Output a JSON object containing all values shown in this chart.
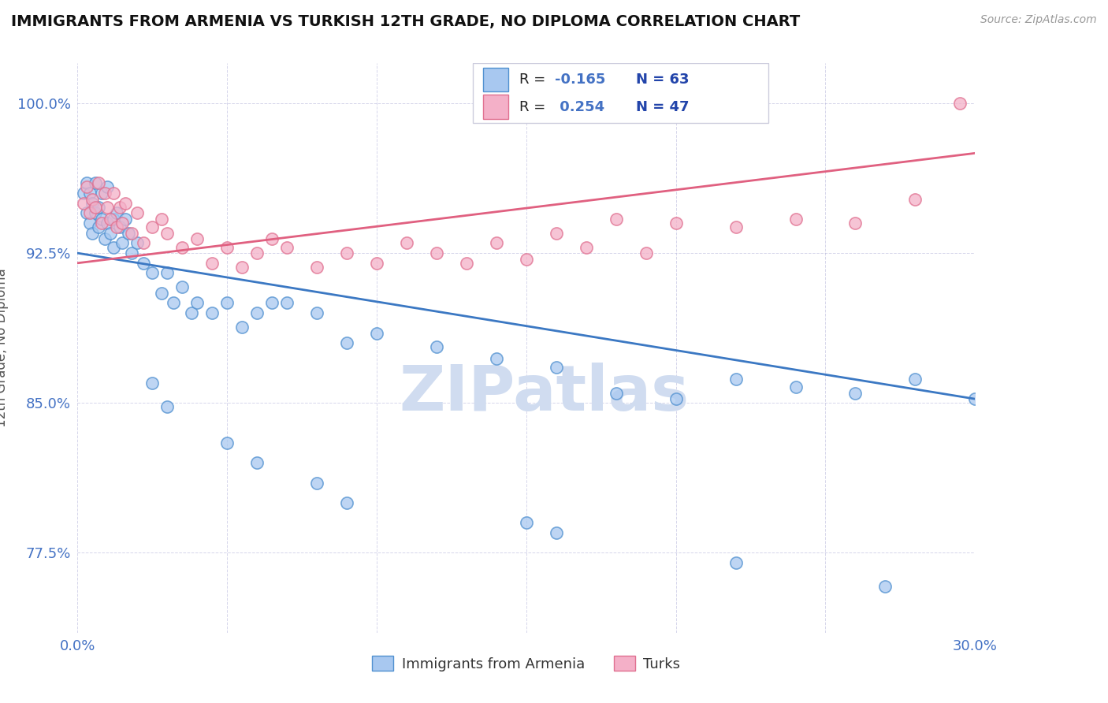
{
  "title": "IMMIGRANTS FROM ARMENIA VS TURKISH 12TH GRADE, NO DIPLOMA CORRELATION CHART",
  "source_text": "Source: ZipAtlas.com",
  "ylabel": "12th Grade, No Diploma",
  "legend_label_1": "Immigrants from Armenia",
  "legend_label_2": "Turks",
  "r1": -0.165,
  "n1": 63,
  "r2": 0.254,
  "n2": 47,
  "xlim": [
    0.0,
    0.3
  ],
  "ylim": [
    0.735,
    1.02
  ],
  "ytick_vals": [
    0.775,
    0.85,
    0.925,
    1.0
  ],
  "ytick_labels": [
    "77.5%",
    "85.0%",
    "92.5%",
    "100.0%"
  ],
  "xtick_vals": [
    0.0,
    0.05,
    0.1,
    0.15,
    0.2,
    0.25,
    0.3
  ],
  "xtick_labels": [
    "0.0%",
    "",
    "",
    "",
    "",
    "",
    "30.0%"
  ],
  "color_blue_fill": "#A8C8F0",
  "color_pink_fill": "#F4B0C8",
  "color_blue_edge": "#5090D0",
  "color_pink_edge": "#E07090",
  "color_blue_line": "#3B78C3",
  "color_pink_line": "#E06080",
  "color_text_blue": "#4472C4",
  "color_dark_blue": "#2244AA",
  "watermark_color": "#D0DCF0",
  "background_color": "#FFFFFF",
  "blue_trend_y0": 0.925,
  "blue_trend_y1": 0.852,
  "pink_trend_y0": 0.92,
  "pink_trend_y1": 0.975,
  "blue_x": [
    0.002,
    0.003,
    0.003,
    0.004,
    0.004,
    0.005,
    0.005,
    0.006,
    0.006,
    0.007,
    0.007,
    0.008,
    0.008,
    0.009,
    0.01,
    0.01,
    0.011,
    0.012,
    0.012,
    0.013,
    0.014,
    0.015,
    0.016,
    0.017,
    0.018,
    0.02,
    0.022,
    0.025,
    0.028,
    0.03,
    0.032,
    0.035,
    0.038,
    0.04,
    0.045,
    0.05,
    0.055,
    0.06,
    0.065,
    0.07,
    0.08,
    0.09,
    0.1,
    0.12,
    0.14,
    0.16,
    0.18,
    0.2,
    0.22,
    0.24,
    0.26,
    0.28,
    0.3,
    0.025,
    0.03,
    0.05,
    0.06,
    0.08,
    0.09,
    0.15,
    0.16,
    0.22,
    0.27
  ],
  "blue_y": [
    0.955,
    0.945,
    0.96,
    0.94,
    0.955,
    0.95,
    0.935,
    0.945,
    0.96,
    0.938,
    0.948,
    0.942,
    0.955,
    0.932,
    0.94,
    0.958,
    0.935,
    0.942,
    0.928,
    0.945,
    0.938,
    0.93,
    0.942,
    0.935,
    0.925,
    0.93,
    0.92,
    0.915,
    0.905,
    0.915,
    0.9,
    0.908,
    0.895,
    0.9,
    0.895,
    0.9,
    0.888,
    0.895,
    0.9,
    0.9,
    0.895,
    0.88,
    0.885,
    0.878,
    0.872,
    0.868,
    0.855,
    0.852,
    0.862,
    0.858,
    0.855,
    0.862,
    0.852,
    0.86,
    0.848,
    0.83,
    0.82,
    0.81,
    0.8,
    0.79,
    0.785,
    0.77,
    0.758
  ],
  "pink_x": [
    0.002,
    0.003,
    0.004,
    0.005,
    0.006,
    0.007,
    0.008,
    0.009,
    0.01,
    0.011,
    0.012,
    0.013,
    0.014,
    0.015,
    0.016,
    0.018,
    0.02,
    0.022,
    0.025,
    0.028,
    0.03,
    0.035,
    0.04,
    0.045,
    0.05,
    0.055,
    0.06,
    0.065,
    0.07,
    0.08,
    0.09,
    0.1,
    0.11,
    0.12,
    0.13,
    0.14,
    0.15,
    0.16,
    0.17,
    0.18,
    0.19,
    0.2,
    0.22,
    0.24,
    0.26,
    0.28,
    0.295
  ],
  "pink_y": [
    0.95,
    0.958,
    0.945,
    0.952,
    0.948,
    0.96,
    0.94,
    0.955,
    0.948,
    0.942,
    0.955,
    0.938,
    0.948,
    0.94,
    0.95,
    0.935,
    0.945,
    0.93,
    0.938,
    0.942,
    0.935,
    0.928,
    0.932,
    0.92,
    0.928,
    0.918,
    0.925,
    0.932,
    0.928,
    0.918,
    0.925,
    0.92,
    0.93,
    0.925,
    0.92,
    0.93,
    0.922,
    0.935,
    0.928,
    0.942,
    0.925,
    0.94,
    0.938,
    0.942,
    0.94,
    0.952,
    1.0
  ]
}
